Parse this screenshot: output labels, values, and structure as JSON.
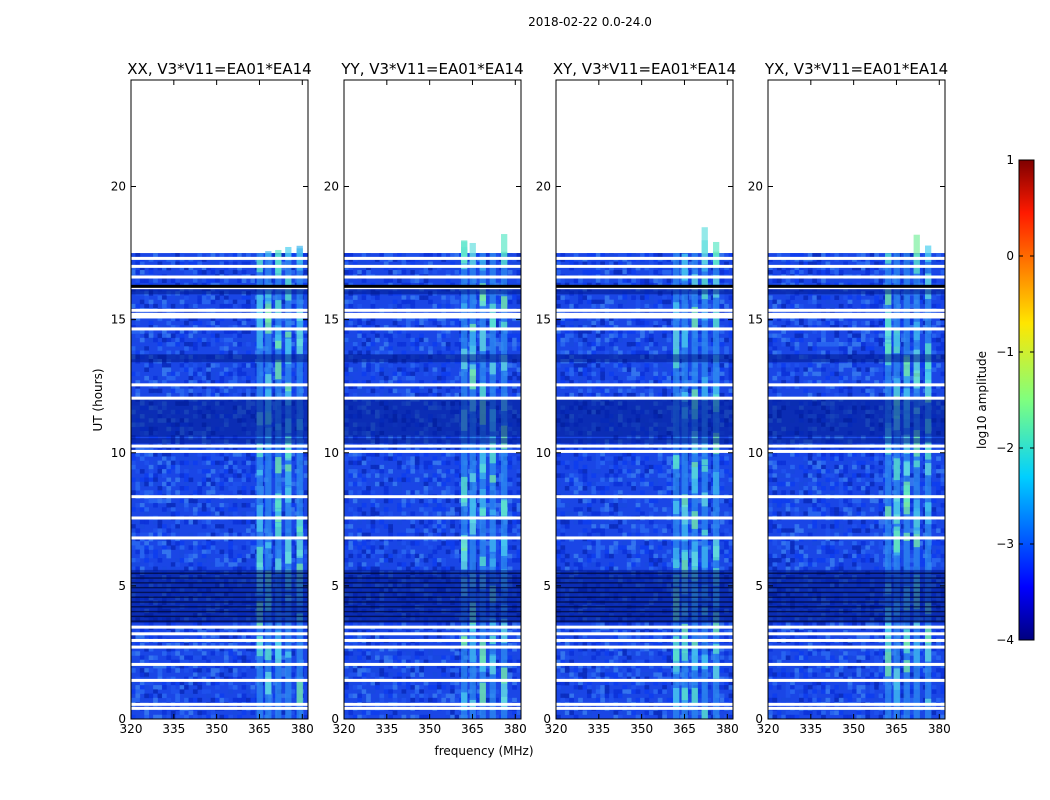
{
  "chart_data": {
    "type": "heatmap",
    "suptitle": "2018-02-22 0.0-24.0",
    "xlabel": "frequency (MHz)",
    "ylabel": "UT (hours)",
    "xlim": [
      320,
      382
    ],
    "ylim": [
      0,
      24
    ],
    "xticks": [
      "320",
      "335",
      "350",
      "365",
      "380"
    ],
    "yticks": [
      "0",
      "5",
      "10",
      "15",
      "20"
    ],
    "data_end_hour": 17.5,
    "rfi_band_mhz": [
      361,
      382
    ],
    "panels": [
      {
        "title": "XX, V3*V11=EA01*EA14",
        "polarization": "XX",
        "rfi_start_mhz": 364
      },
      {
        "title": "YY, V3*V11=EA01*EA14",
        "polarization": "YY",
        "rfi_start_mhz": 361
      },
      {
        "title": "XY, V3*V11=EA01*EA14",
        "polarization": "XY",
        "rfi_start_mhz": 361
      },
      {
        "title": "YX, V3*V11=EA01*EA14",
        "polarization": "YX",
        "rfi_start_mhz": 361
      }
    ],
    "flagged_hours": [
      0.4,
      0.55,
      1.45,
      2.05,
      2.7,
      2.95,
      3.2,
      3.45,
      6.8,
      7.55,
      8.35,
      10.05,
      10.25,
      12.05,
      12.55,
      14.65,
      15.1,
      15.2,
      15.35,
      16.2,
      16.6,
      17.0,
      17.3
    ],
    "dark_bands_hours": [
      [
        3.6,
        5.6
      ],
      [
        10.35,
        10.55
      ],
      [
        10.6,
        12.0
      ],
      [
        15.95,
        16.15
      ],
      [
        13.4,
        13.7
      ]
    ],
    "colorbar": {
      "label": "log10 amplitude",
      "range": [
        -4,
        1
      ],
      "ticks": [
        "1",
        "0",
        "−1",
        "−2",
        "−3",
        "−4"
      ],
      "colormap": "jet"
    }
  }
}
